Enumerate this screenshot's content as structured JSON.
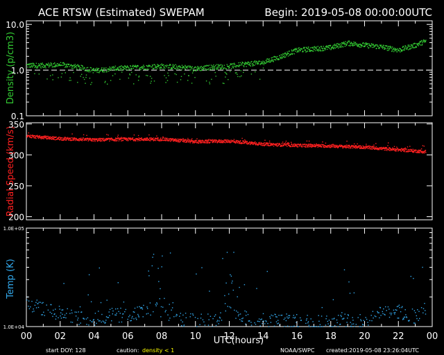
{
  "header": {
    "title": "ACE RTSW (Estimated) SWEPAM",
    "begin": "Begin: 2019-05-08 00:00:00UTC"
  },
  "footer": {
    "start_doy": "start DOY: 128",
    "caution_label": "caution:",
    "caution_text": "density < 1",
    "credit": "NOAA/SWPC",
    "created": "created:2019-05-08 23:26:04UTC"
  },
  "colors": {
    "background": "#000000",
    "axes": "#ffffff",
    "density": "#33cc33",
    "speed": "#ff2020",
    "temp": "#33aaee",
    "caution": "#ffff00"
  },
  "chart_data": [
    {
      "type": "scatter",
      "name": "density",
      "ylabel": "Density (p/cm3)",
      "yscale": "log",
      "ylim": [
        0.1,
        12
      ],
      "yticks": [
        "10.0",
        "1.0",
        "0.1"
      ],
      "ytick_values": [
        10,
        1,
        0.1
      ],
      "reference_line": 1.0,
      "x_unit": "UTC hours",
      "trend": [
        [
          0,
          1.3
        ],
        [
          1,
          1.3
        ],
        [
          2,
          1.35
        ],
        [
          3,
          1.2
        ],
        [
          4,
          1.0
        ],
        [
          5,
          1.1
        ],
        [
          6,
          1.15
        ],
        [
          7,
          1.2
        ],
        [
          8,
          1.25
        ],
        [
          9,
          1.2
        ],
        [
          10,
          1.1
        ],
        [
          11,
          1.2
        ],
        [
          12,
          1.25
        ],
        [
          13,
          1.4
        ],
        [
          14,
          1.5
        ],
        [
          15,
          2.0
        ],
        [
          16,
          2.8
        ],
        [
          17,
          3.0
        ],
        [
          18,
          3.2
        ],
        [
          19,
          4.0
        ],
        [
          20,
          3.6
        ],
        [
          21,
          3.3
        ],
        [
          22,
          2.8
        ],
        [
          23,
          3.6
        ],
        [
          23.5,
          4.3
        ]
      ]
    },
    {
      "type": "scatter",
      "name": "radial speed",
      "ylabel": "Radial Speed (km/s)",
      "ylim": [
        195,
        352
      ],
      "yticks": [
        "350",
        "300",
        "250",
        "200"
      ],
      "ytick_values": [
        350,
        300,
        250,
        200
      ],
      "x_unit": "UTC hours",
      "trend": [
        [
          0,
          331
        ],
        [
          2,
          327
        ],
        [
          4,
          325
        ],
        [
          6,
          326
        ],
        [
          8,
          326
        ],
        [
          10,
          322
        ],
        [
          12,
          323
        ],
        [
          14,
          318
        ],
        [
          16,
          316
        ],
        [
          18,
          315
        ],
        [
          20,
          313
        ],
        [
          22,
          309
        ],
        [
          23.5,
          306
        ]
      ]
    },
    {
      "type": "scatter",
      "name": "temperature",
      "ylabel": "Temp (K)",
      "yscale": "log",
      "ylim": [
        10000,
        100000
      ],
      "yticks": [
        "1.0E+05",
        "1.0E+04"
      ],
      "ytick_values": [
        100000,
        10000
      ],
      "x_unit": "UTC hours",
      "trend": [
        [
          0,
          17000
        ],
        [
          1,
          14500
        ],
        [
          2,
          13000
        ],
        [
          3,
          11500
        ],
        [
          4,
          11500
        ],
        [
          5,
          12500
        ],
        [
          6,
          12500
        ],
        [
          7,
          13500
        ],
        [
          8,
          16000
        ],
        [
          9,
          11500
        ],
        [
          10,
          11000
        ],
        [
          11,
          11000
        ],
        [
          12,
          14000
        ],
        [
          13,
          11500
        ],
        [
          14,
          11000
        ],
        [
          15,
          11000
        ],
        [
          16,
          10800
        ],
        [
          17,
          10800
        ],
        [
          18,
          10800
        ],
        [
          19,
          11000
        ],
        [
          20,
          11000
        ],
        [
          21,
          13500
        ],
        [
          22,
          13500
        ],
        [
          23,
          12000
        ],
        [
          23.5,
          14000
        ]
      ],
      "bursts": [
        {
          "x": [
            7.2,
            8.6
          ],
          "peak": 60000
        },
        {
          "x": [
            11.4,
            12.6
          ],
          "peak": 55000
        }
      ]
    }
  ],
  "xaxis": {
    "label": "UTC(hours)",
    "range": [
      0,
      24
    ],
    "ticks": [
      "00",
      "02",
      "04",
      "06",
      "08",
      "10",
      "12",
      "14",
      "16",
      "18",
      "20",
      "22",
      "00"
    ]
  }
}
